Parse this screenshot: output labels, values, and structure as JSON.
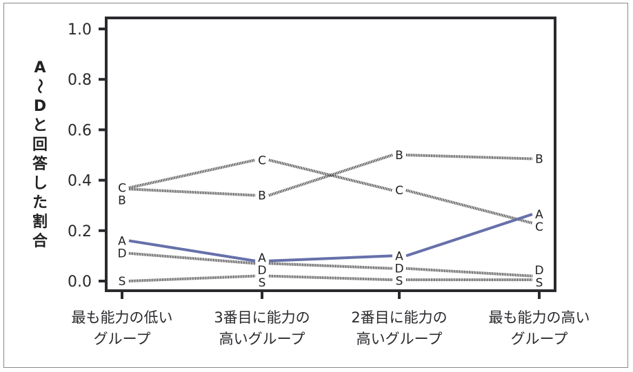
{
  "chart_data": {
    "type": "line",
    "title": "",
    "ylabel": "A〜Dと回答した割合",
    "xlabel": "",
    "ylim": [
      0,
      1
    ],
    "yticks": [
      "0.0",
      "0.2",
      "0.4",
      "0.6",
      "0.8",
      "1.0"
    ],
    "categories": [
      [
        "最も能力の低い",
        "グループ"
      ],
      [
        "3番目に能力の",
        "高いグループ"
      ],
      [
        "2番目に能力の",
        "高いグループ"
      ],
      [
        "最も能力の高い",
        "グループ"
      ]
    ],
    "series": [
      {
        "name": "C",
        "values": [
          0.37,
          0.48,
          0.36,
          0.23
        ],
        "style": "dotted",
        "color": "#333333"
      },
      {
        "name": "B",
        "values": [
          0.365,
          0.34,
          0.5,
          0.485
        ],
        "style": "dotted",
        "color": "#333333"
      },
      {
        "name": "D",
        "values": [
          0.11,
          0.07,
          0.05,
          0.02
        ],
        "style": "dotted",
        "color": "#333333"
      },
      {
        "name": "S",
        "values": [
          0.0,
          0.02,
          0.005,
          0.005
        ],
        "style": "dotted",
        "color": "#333333"
      },
      {
        "name": "A",
        "values": [
          0.16,
          0.08,
          0.1,
          0.265
        ],
        "style": "solid",
        "color": "#6670aa"
      }
    ]
  }
}
